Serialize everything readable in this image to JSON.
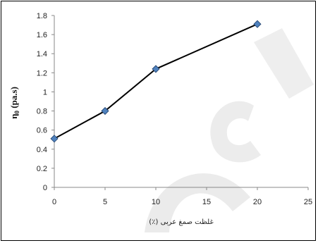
{
  "chart_data": {
    "type": "line",
    "title": "",
    "xlabel": "غلظت صمغ عربی (٪)",
    "ylabel": "η0 (pa.s)",
    "ylabel_main": "η",
    "ylabel_sub": "0",
    "ylabel_unit": " (pa.s)",
    "xlim": [
      0,
      25
    ],
    "ylim": [
      0,
      1.8
    ],
    "x_ticks": [
      "0",
      "5",
      "10",
      "15",
      "20",
      "25"
    ],
    "y_ticks": [
      "0",
      "0.2",
      "0.4",
      "0.6",
      "0.8",
      "1",
      "1.2",
      "1.4",
      "1.6",
      "1.8"
    ],
    "grid": false,
    "legend": "none",
    "series": [
      {
        "x": [
          0,
          5,
          10,
          20
        ],
        "values": [
          0.51,
          0.8,
          1.24,
          1.71
        ],
        "line_color": "#000000",
        "marker_color": "#4f81bd",
        "marker": "diamond"
      }
    ]
  }
}
